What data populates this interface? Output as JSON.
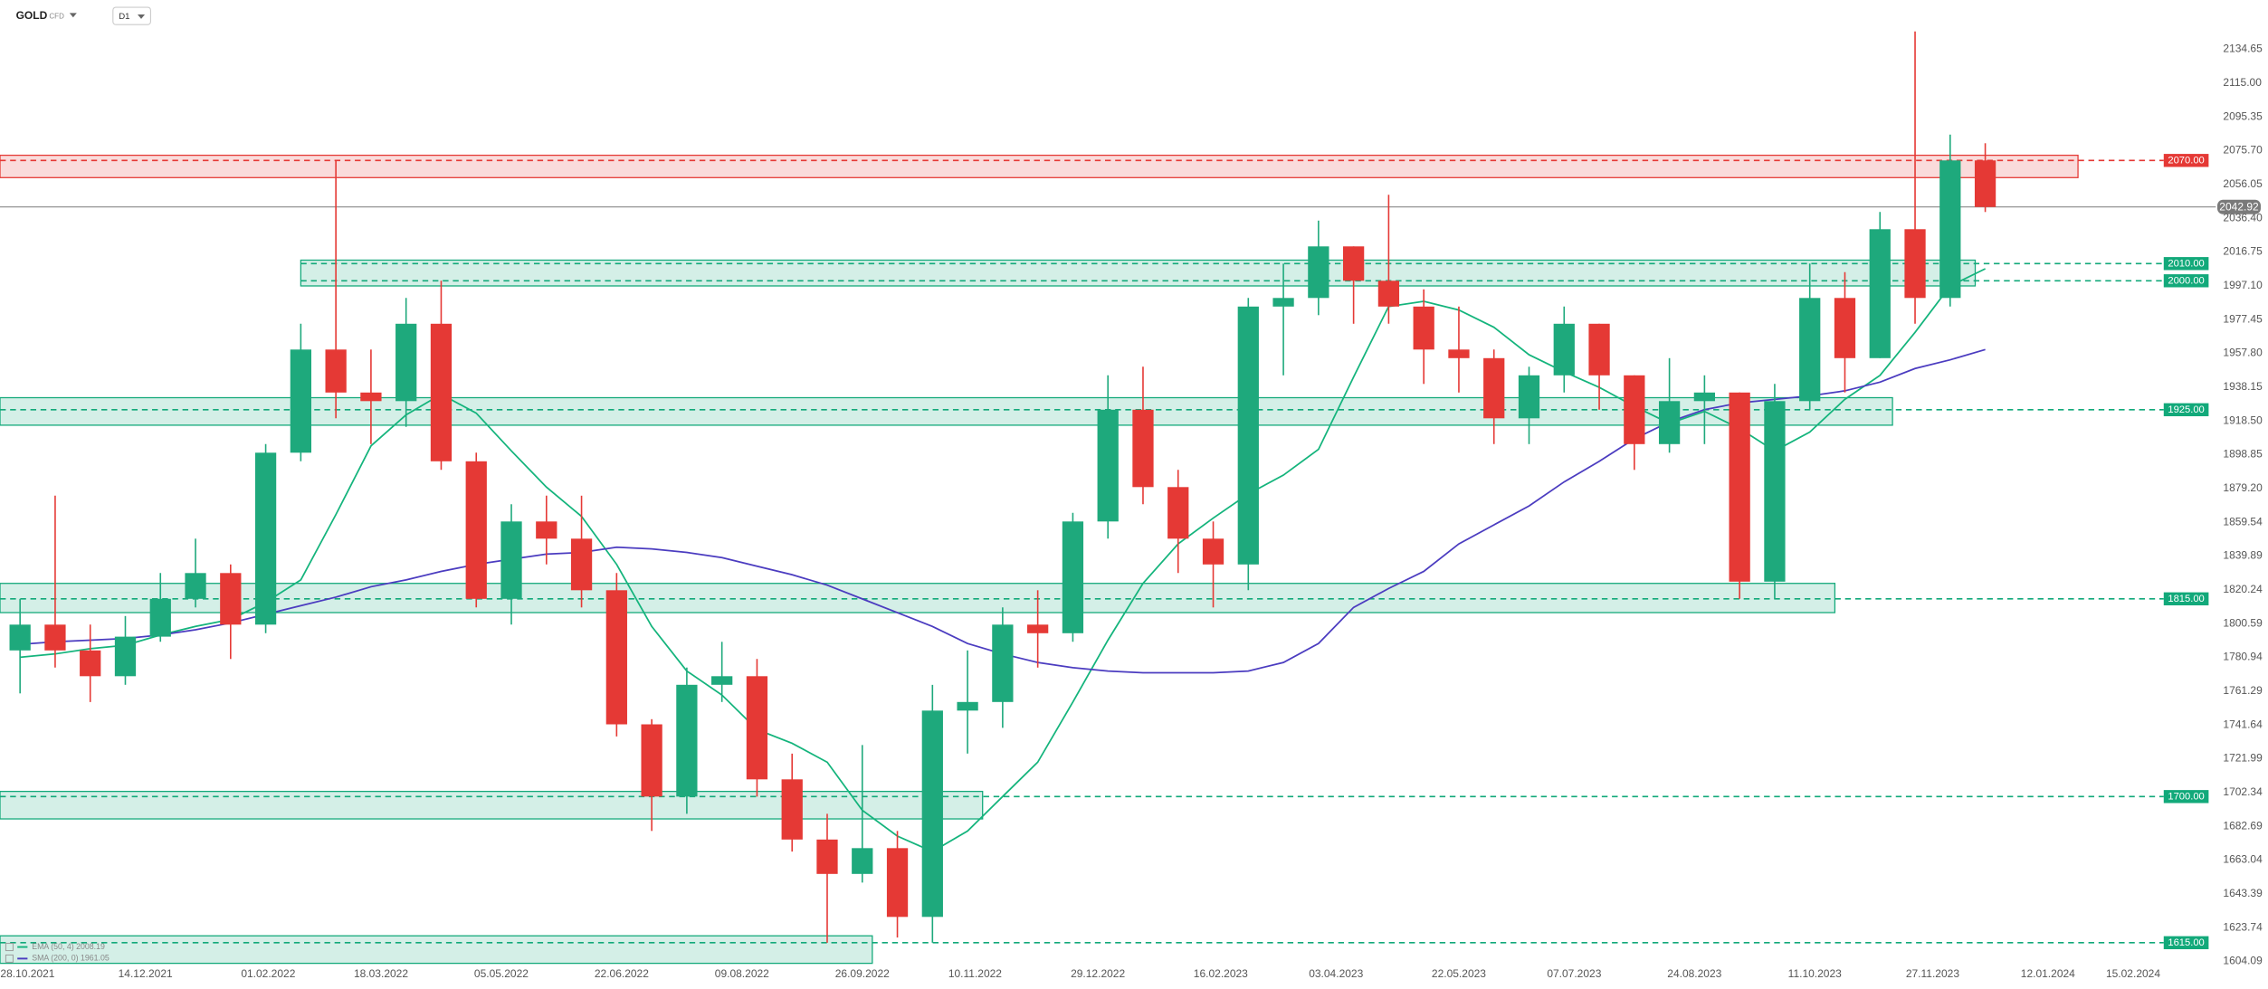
{
  "header": {
    "symbol": "GOLD",
    "instrument_type": "CFD",
    "timeframe": "D1"
  },
  "chart_data": {
    "type": "candlestick",
    "x": [
      "18.10.2021",
      "01.11.2021",
      "15.11.2021",
      "29.11.2021",
      "13.12.2021",
      "27.12.2021",
      "10.01.2022",
      "24.01.2022",
      "07.02.2022",
      "21.02.2022",
      "07.03.2022",
      "21.03.2022",
      "04.04.2022",
      "18.04.2022",
      "02.05.2022",
      "16.05.2022",
      "30.05.2022",
      "13.06.2022",
      "27.06.2022",
      "11.07.2022",
      "25.07.2022",
      "08.08.2022",
      "22.08.2022",
      "05.09.2022",
      "19.09.2022",
      "03.10.2022",
      "17.10.2022",
      "31.10.2022",
      "14.11.2022",
      "28.11.2022",
      "12.12.2022",
      "26.12.2022",
      "09.01.2023",
      "23.01.2023",
      "06.02.2023",
      "20.02.2023",
      "06.03.2023",
      "20.03.2023",
      "03.04.2023",
      "17.04.2023",
      "01.05.2023",
      "15.05.2023",
      "29.05.2023",
      "12.06.2023",
      "26.06.2023",
      "10.07.2023",
      "24.07.2023",
      "07.08.2023",
      "21.08.2023",
      "04.09.2023",
      "18.09.2023",
      "02.10.2023",
      "16.10.2023",
      "30.10.2023",
      "13.11.2023",
      "27.11.2023",
      "11.12.2023"
    ],
    "open": [
      1785,
      1800,
      1785,
      1770,
      1793,
      1815,
      1830,
      1800,
      1900,
      1960,
      1935,
      1930,
      1975,
      1895,
      1815,
      1860,
      1850,
      1820,
      1742,
      1700,
      1765,
      1770,
      1710,
      1675,
      1655,
      1670,
      1630,
      1750,
      1755,
      1800,
      1795,
      1860,
      1925,
      1880,
      1850,
      1835,
      1985,
      1990,
      2020,
      2000,
      1985,
      1960,
      1955,
      1920,
      1945,
      1975,
      1945,
      1905,
      1930,
      1935,
      1825,
      1930,
      1990,
      1955,
      2030,
      1990,
      2070
    ],
    "high": [
      1815,
      1875,
      1800,
      1805,
      1830,
      1850,
      1835,
      1905,
      1975,
      2070,
      1960,
      1990,
      2000,
      1900,
      1870,
      1875,
      1875,
      1830,
      1745,
      1775,
      1790,
      1780,
      1725,
      1690,
      1730,
      1680,
      1765,
      1785,
      1810,
      1820,
      1865,
      1945,
      1950,
      1890,
      1860,
      1990,
      2010,
      2035,
      2020,
      2050,
      1995,
      1985,
      1960,
      1950,
      1985,
      1975,
      1945,
      1955,
      1945,
      1935,
      1940,
      2010,
      2005,
      2040,
      2145,
      2085,
      2080
    ],
    "low": [
      1760,
      1775,
      1755,
      1765,
      1790,
      1810,
      1780,
      1795,
      1895,
      1920,
      1905,
      1915,
      1890,
      1810,
      1800,
      1835,
      1810,
      1735,
      1680,
      1690,
      1755,
      1700,
      1668,
      1615,
      1650,
      1618,
      1615,
      1725,
      1740,
      1775,
      1790,
      1850,
      1870,
      1830,
      1810,
      1820,
      1945,
      1980,
      1975,
      1975,
      1940,
      1935,
      1905,
      1905,
      1935,
      1925,
      1890,
      1900,
      1905,
      1815,
      1815,
      1925,
      1935,
      1955,
      1975,
      1985,
      2040
    ],
    "close": [
      1800,
      1785,
      1770,
      1793,
      1815,
      1830,
      1800,
      1900,
      1960,
      1935,
      1930,
      1975,
      1895,
      1815,
      1860,
      1850,
      1820,
      1742,
      1700,
      1765,
      1770,
      1710,
      1675,
      1655,
      1670,
      1630,
      1750,
      1755,
      1800,
      1795,
      1860,
      1925,
      1880,
      1850,
      1835,
      1985,
      1990,
      2020,
      2000,
      1985,
      1960,
      1955,
      1920,
      1945,
      1975,
      1945,
      1905,
      1930,
      1935,
      1825,
      1930,
      1990,
      1955,
      2030,
      1990,
      2070,
      2042.92
    ],
    "up_color": "#1ea97c",
    "down_color": "#e53935",
    "series": [
      {
        "name": "EMA (50, 4) 2008.19",
        "color": "#14b47c",
        "values": [
          1781,
          1783,
          1786,
          1788,
          1794,
          1799,
          1803,
          1813,
          1826,
          1864,
          1904,
          1922,
          1934,
          1923,
          1901,
          1880,
          1863,
          1835,
          1799,
          1773,
          1759,
          1739,
          1731,
          1720,
          1692,
          1677,
          1668,
          1680,
          1700,
          1720,
          1755,
          1791,
          1824,
          1847,
          1862,
          1876,
          1887,
          1902,
          1944,
          1985,
          1988,
          1983,
          1973,
          1957,
          1947,
          1938,
          1927,
          1917,
          1924,
          1914,
          1901,
          1912,
          1931,
          1945,
          1970,
          1997,
          2007
        ]
      },
      {
        "name": "SMA (200, 0) 1961.05",
        "color": "#4b3cc0",
        "values": [
          1788.5,
          1790,
          1791,
          1792,
          1794,
          1797,
          1801,
          1806,
          1811,
          1816,
          1822,
          1826,
          1831,
          1835,
          1838,
          1841,
          1842,
          1845,
          1844,
          1842,
          1839,
          1834,
          1829,
          1823,
          1815,
          1807,
          1799,
          1789,
          1783,
          1778,
          1775,
          1773,
          1772,
          1772,
          1772,
          1773,
          1778,
          1789,
          1810,
          1821,
          1831,
          1847,
          1858,
          1869,
          1883,
          1895,
          1908,
          1918,
          1925,
          1929,
          1931,
          1933,
          1936,
          1941,
          1949,
          1954,
          1960
        ]
      }
    ],
    "xlim": [
      "17.10.2021",
      "19.03.2024"
    ],
    "xticks": [
      "28.10.2021",
      "14.12.2021",
      "01.02.2022",
      "18.03.2022",
      "05.05.2022",
      "22.06.2022",
      "09.08.2022",
      "26.09.2022",
      "10.11.2022",
      "29.12.2022",
      "16.02.2023",
      "03.04.2023",
      "22.05.2023",
      "07.07.2023",
      "24.08.2023",
      "11.10.2023",
      "27.11.2023",
      "12.01.2024",
      "15.02.2024"
    ],
    "ylim": [
      1590.6,
      2163.3
    ],
    "yticks": [
      2134.65,
      {
        "value": 2115,
        "label": "2115.00"
      },
      2095.35,
      {
        "value": 2075.7,
        "label": "2075.70"
      },
      2056.05,
      {
        "value": 2036.4,
        "label": "2036.40"
      },
      2016.75,
      {
        "value": 1997.1,
        "label": "1997.10"
      },
      1977.45,
      {
        "value": 1957.8,
        "label": "1957.80"
      },
      1938.15,
      {
        "value": 1918.5,
        "label": "1918.50"
      },
      1898.85,
      {
        "value": 1879.2,
        "label": "1879.20"
      },
      1859.54,
      1839.89,
      1820.24,
      1800.59,
      1780.94,
      1761.29,
      1741.64,
      1721.99,
      1702.34,
      1682.69,
      1663.04,
      1643.39,
      1623.74,
      1604.09
    ],
    "last_price": 2042.92,
    "zones": [
      {
        "top": 2073,
        "bottom": 2060,
        "end": "24.01.2024",
        "color": "#e53935",
        "levels": [
          {
            "value": 2070,
            "label": "2070.00"
          }
        ]
      },
      {
        "top": 2012,
        "bottom": 1997,
        "start": "14.02.2022",
        "end": "14.12.2023",
        "color": "#12a97a",
        "levels": [
          {
            "value": 2010,
            "label": "2010.00"
          },
          {
            "value": 2000,
            "label": "2000.00"
          }
        ]
      },
      {
        "top": 1932,
        "bottom": 1916,
        "end": "11.11.2023",
        "color": "#12a97a",
        "levels": [
          {
            "value": 1925,
            "label": "1925.00"
          }
        ]
      },
      {
        "top": 1824,
        "bottom": 1807,
        "end": "19.10.2023",
        "color": "#12a97a",
        "levels": [
          {
            "value": 1815,
            "label": "1815.00"
          }
        ]
      },
      {
        "top": 1703,
        "bottom": 1687,
        "end": "13.11.2022",
        "color": "#12a97a",
        "levels": [
          {
            "value": 1700,
            "label": "1700.00"
          }
        ]
      },
      {
        "top": 1619,
        "bottom": 1603,
        "end": "30.09.2022",
        "color": "#12a97a",
        "levels": [
          {
            "value": 1615,
            "label": "1615.00"
          }
        ]
      }
    ]
  }
}
